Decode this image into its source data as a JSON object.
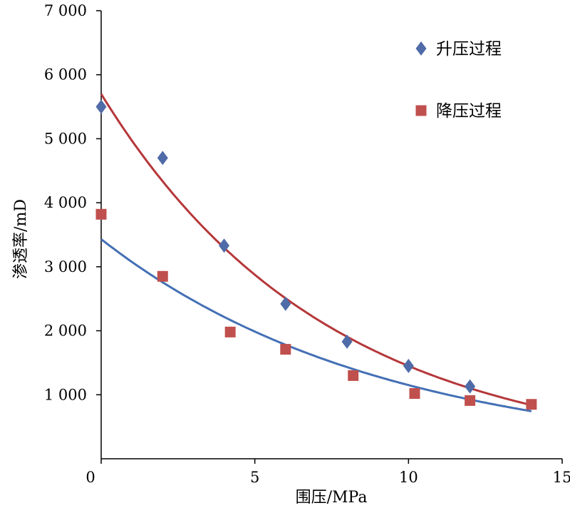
{
  "chart_data": {
    "type": "scatter",
    "xlabel": "围压/MPa",
    "ylabel": "渗透率/mD",
    "xlim": [
      0,
      15
    ],
    "ylim": [
      0,
      7000
    ],
    "x_ticks": [
      0,
      5,
      10,
      15
    ],
    "x_tick_labels": [
      "0",
      "5",
      "10",
      "15"
    ],
    "y_ticks": [
      1000,
      2000,
      3000,
      4000,
      5000,
      6000,
      7000
    ],
    "y_tick_labels": [
      "1 000",
      "2 000",
      "3 000",
      "4 000",
      "5 000",
      "6 000",
      "7 000"
    ],
    "grid": false,
    "legend_position": "top-right",
    "series": [
      {
        "name": "升压过程",
        "marker": "diamond",
        "color": "#4F6BA8",
        "fit_color": "#B5373A",
        "x": [
          0,
          2,
          4,
          6,
          8,
          10,
          12
        ],
        "y": [
          5500,
          4700,
          3330,
          2420,
          1830,
          1450,
          1130
        ]
      },
      {
        "name": "降压过程",
        "marker": "square",
        "color": "#C0504D",
        "fit_color": "#4470B5",
        "x": [
          0,
          2,
          4.2,
          6,
          8.2,
          10.2,
          12,
          14
        ],
        "y": [
          3820,
          2850,
          1980,
          1710,
          1300,
          1020,
          910,
          850
        ]
      }
    ],
    "trendlines": [
      {
        "series": "升压过程",
        "type": "exponential",
        "x_range": [
          0,
          14
        ],
        "a": 5700,
        "b": 0.1369
      },
      {
        "series": "降压过程",
        "type": "exponential",
        "x_range": [
          0,
          14
        ],
        "a": 3430,
        "b": 0.1092
      }
    ]
  }
}
